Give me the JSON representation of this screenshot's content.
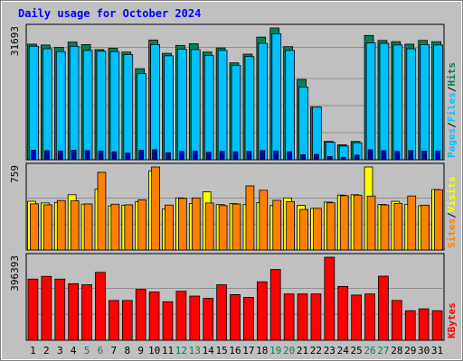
{
  "colors": {
    "background": "#c0c0c0",
    "title": "#0000ff",
    "hits": "#00805c",
    "files": "#00c0ff",
    "pages": "#00c0ff",
    "visits": "#ffff00",
    "sites": "#ff8000",
    "kbytes": "#ff0000",
    "weekend_day": "#00805c",
    "weekday": "#000000"
  },
  "chart_data": {
    "type": "bar",
    "title": "Daily usage for October 2024",
    "days": [
      "1",
      "2",
      "3",
      "4",
      "5",
      "6",
      "7",
      "8",
      "9",
      "10",
      "11",
      "12",
      "13",
      "14",
      "15",
      "16",
      "17",
      "18",
      "19",
      "20",
      "21",
      "22",
      "23",
      "24",
      "25",
      "26",
      "27",
      "28",
      "29",
      "30",
      "31"
    ],
    "weekend_days": [
      "5",
      "6",
      "12",
      "13",
      "19",
      "20",
      "26",
      "27"
    ],
    "panels": [
      {
        "id": "hits-files-pages",
        "max_label": "31693",
        "ylim": [
          0,
          31693
        ],
        "legend": [
          {
            "label": "Hits",
            "color": "#00805c"
          },
          {
            "label": "Files",
            "color": "#00c0ff"
          },
          {
            "label": "Pages",
            "color": "#00c0ff"
          }
        ],
        "series": [
          {
            "name": "Hits",
            "color": "#00805c",
            "values": [
              27800,
              27600,
              27000,
              28300,
              27700,
              26500,
              26800,
              25900,
              21900,
              28800,
              25600,
              27500,
              27900,
              25900,
              26900,
              23300,
              25400,
              29500,
              31693,
              27200,
              19300,
              12700,
              4400,
              3600,
              4400,
              29900,
              28700,
              28400,
              27800,
              28700,
              28400
            ]
          },
          {
            "name": "Files",
            "color": "#00c0ff",
            "values": [
              27300,
              26700,
              26000,
              27300,
              26300,
              26100,
              26000,
              25300,
              20700,
              27700,
              25000,
              26600,
              26500,
              25100,
              26300,
              22700,
              24800,
              28000,
              30300,
              26300,
              17500,
              12700,
              4200,
              3300,
              4100,
              28100,
              28000,
              27600,
              26700,
              27700,
              27600
            ]
          },
          {
            "name": "Pages",
            "color": "#0000c0",
            "values": [
              2300,
              2200,
              2100,
              2300,
              2200,
              2100,
              1900,
              1600,
              2300,
              2400,
              1700,
              2000,
              2100,
              1800,
              2000,
              1900,
              2000,
              2200,
              2100,
              1900,
              1200,
              1300,
              800,
              600,
              1100,
              2400,
              2200,
              2000,
              2200,
              2100,
              2100
            ]
          }
        ]
      },
      {
        "id": "visits-sites",
        "max_label": "759",
        "ylim": [
          0,
          759
        ],
        "legend": [
          {
            "label": "Visits",
            "color": "#ffff00"
          },
          {
            "label": "Sites",
            "color": "#ff8000"
          }
        ],
        "series": [
          {
            "name": "Visits",
            "color": "#ffff00",
            "values": [
              445,
              430,
              434,
              505,
              419,
              556,
              403,
              409,
              441,
              724,
              374,
              476,
              424,
              531,
              415,
              424,
              415,
              433,
              406,
              476,
              408,
              380,
              438,
              502,
              505,
              759,
              416,
              445,
              417,
              405,
              553
            ]
          },
          {
            "name": "Sites",
            "color": "#ff8000",
            "values": [
              422,
              413,
              452,
              449,
              421,
              710,
              419,
              413,
              458,
              759,
              411,
              472,
              476,
              430,
              406,
              420,
              586,
              546,
              454,
              442,
              371,
              381,
              431,
              496,
              501,
              493,
              412,
              426,
              494,
              410,
              551
            ]
          }
        ]
      },
      {
        "id": "kbytes",
        "max_label": "396393",
        "ylim": [
          0,
          396393
        ],
        "legend": [
          {
            "label": "KBytes",
            "color": "#ff0000"
          }
        ],
        "series": [
          {
            "name": "KBytes",
            "color": "#ff0000",
            "values": [
              292000,
              305000,
              292000,
              270000,
              265000,
              324000,
              190000,
              190000,
              243000,
              230000,
              184000,
              234000,
              211000,
              200000,
              265000,
              218000,
              205000,
              279000,
              338000,
              221000,
              221000,
              221000,
              396393,
              257000,
              216000,
              221000,
              306000,
              190000,
              141000,
              150000,
              141000
            ]
          }
        ]
      }
    ]
  }
}
